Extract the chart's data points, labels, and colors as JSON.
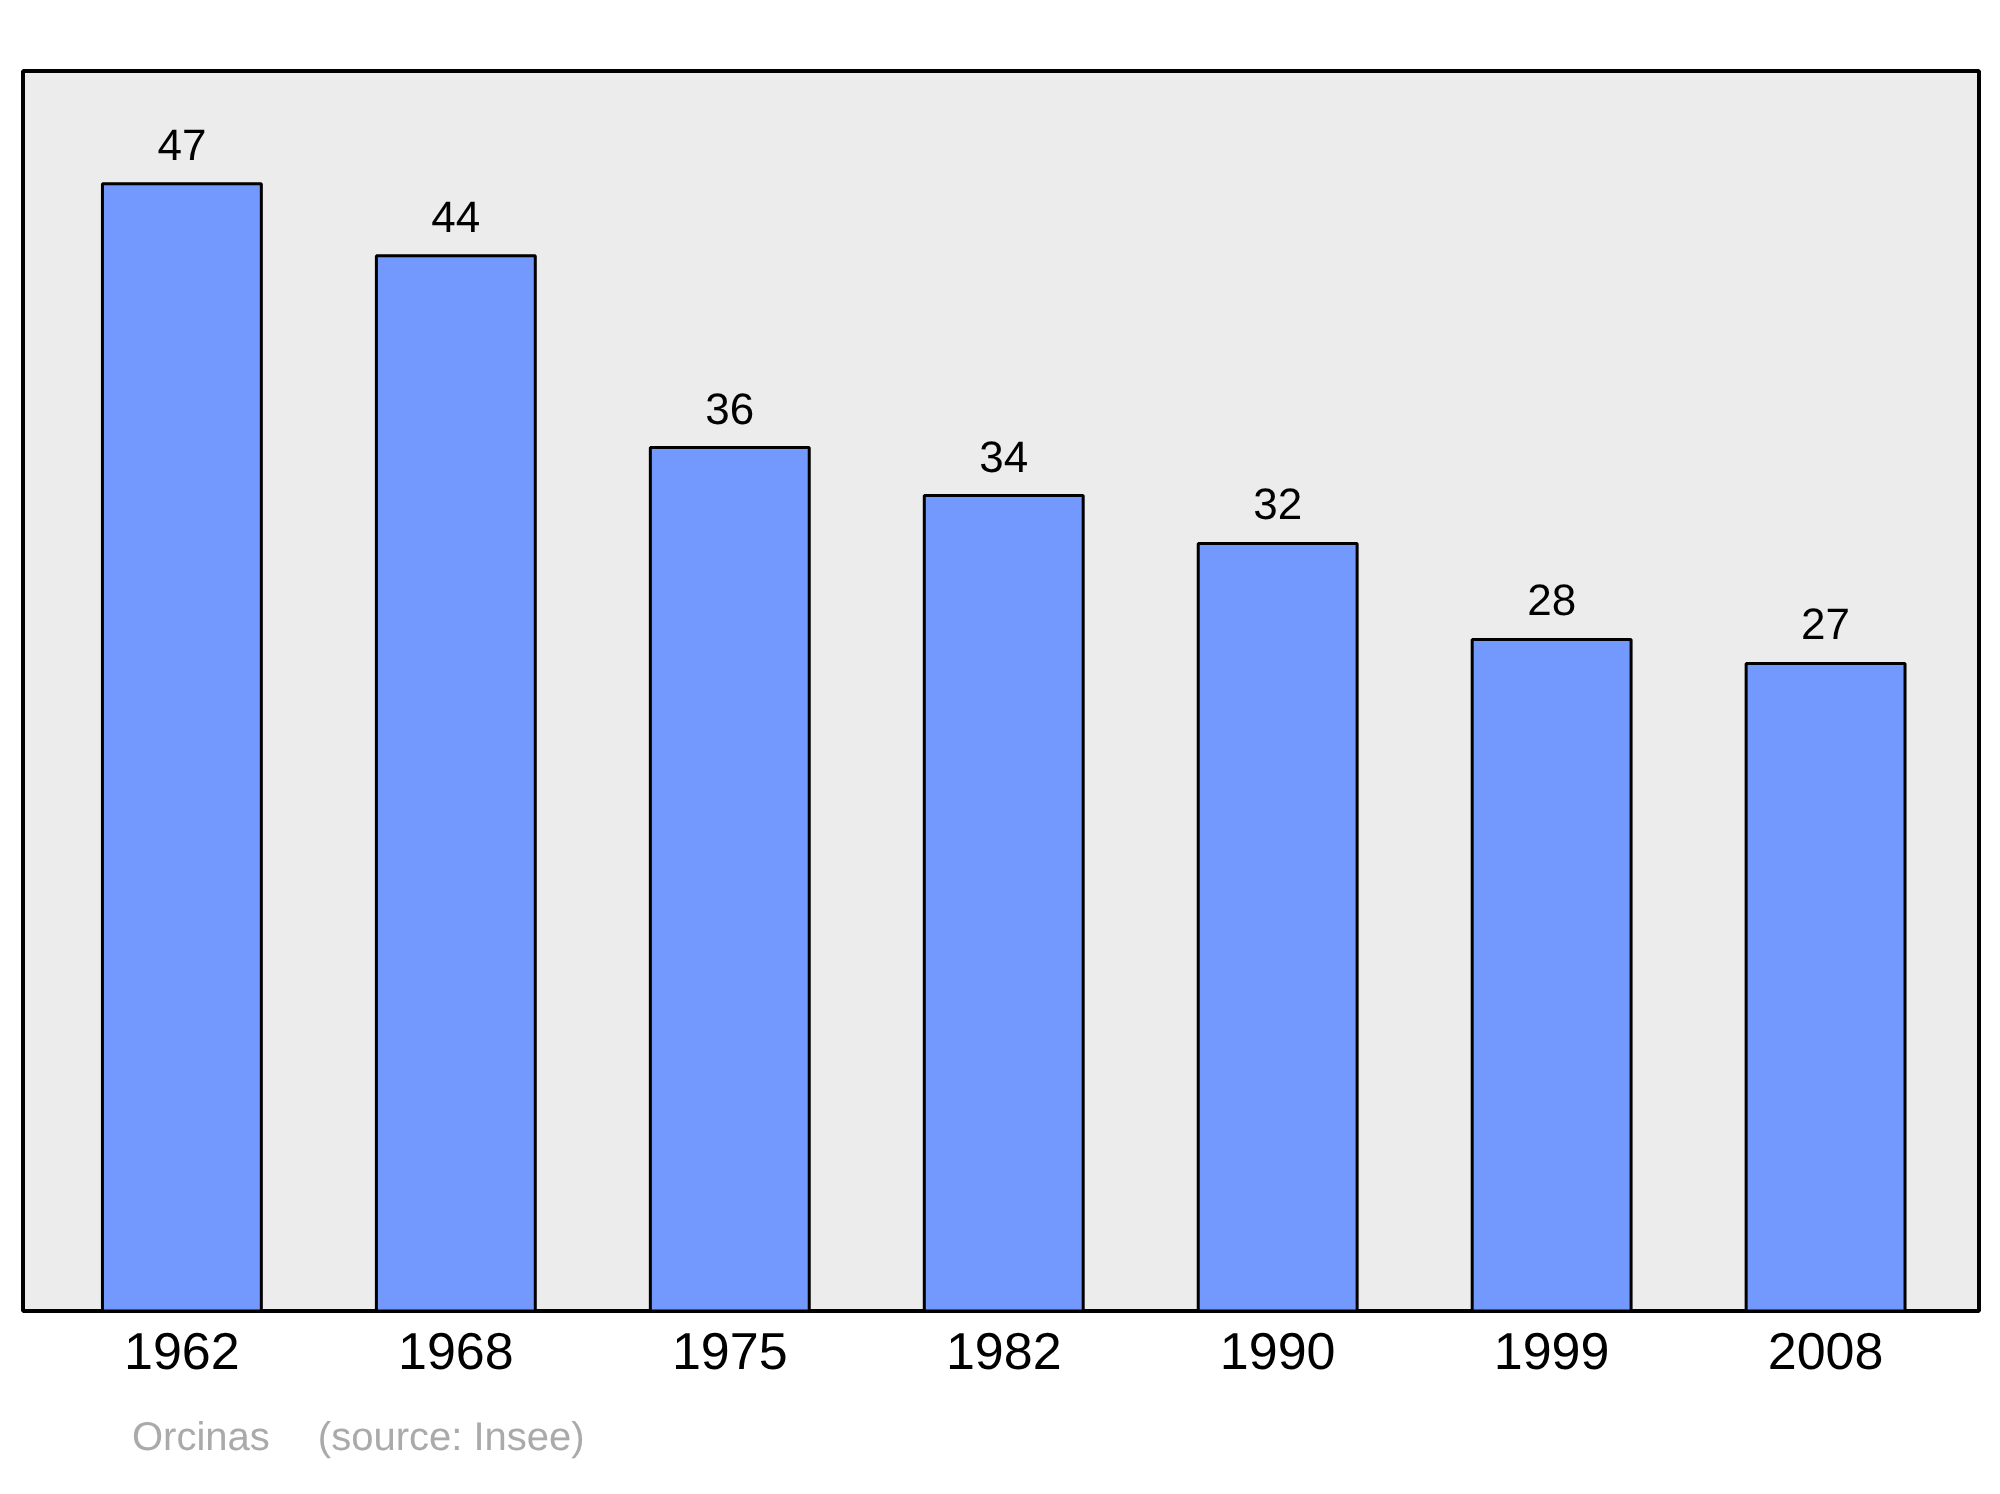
{
  "chart_data": {
    "type": "bar",
    "categories": [
      "1962",
      "1968",
      "1975",
      "1982",
      "1990",
      "1999",
      "2008"
    ],
    "values": [
      47,
      44,
      36,
      34,
      32,
      28,
      27
    ],
    "color": "#7399ff",
    "data_labels": true,
    "tick_labels": "x",
    "annotations": [
      "Orcinas",
      "(source: Insee)"
    ]
  }
}
